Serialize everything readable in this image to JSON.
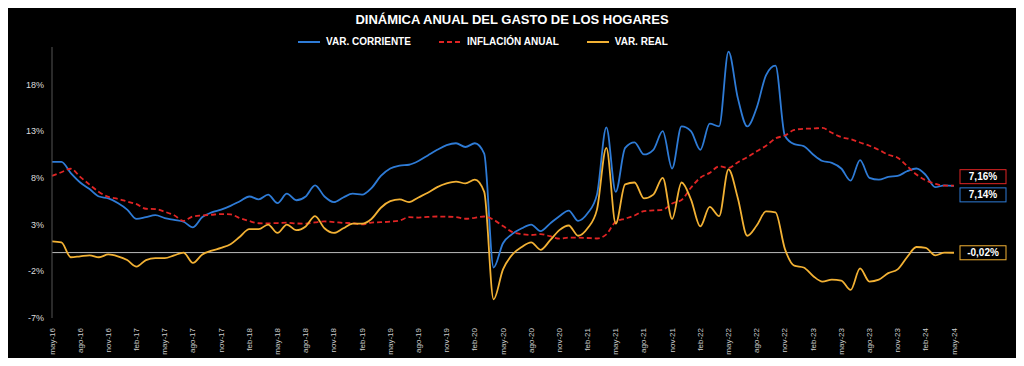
{
  "chart_data": {
    "type": "line",
    "title": "DINÁMICA ANUAL DEL GASTO DE LOS HOGARES",
    "legend": "top",
    "grid": false,
    "categories": [
      "may-16",
      null,
      null,
      "ago-16",
      null,
      null,
      "nov-16",
      null,
      null,
      "feb-17",
      null,
      null,
      "may-17",
      null,
      null,
      "ago-17",
      null,
      null,
      "nov-17",
      null,
      null,
      "feb-18",
      null,
      null,
      "may-18",
      null,
      null,
      "ago-18",
      null,
      null,
      "nov-18",
      null,
      null,
      "feb-19",
      null,
      null,
      "may-19",
      null,
      null,
      "ago-19",
      null,
      null,
      "nov-19",
      null,
      null,
      "feb-20",
      null,
      null,
      "may-20",
      null,
      null,
      "ago-20",
      null,
      null,
      "nov-20",
      null,
      null,
      "feb-21",
      null,
      null,
      "may-21",
      null,
      null,
      "ago-21",
      null,
      null,
      "nov-21",
      null,
      null,
      "feb-22",
      null,
      null,
      "may-22",
      null,
      null,
      "ago-22",
      null,
      null,
      "nov-22",
      null,
      null,
      "feb-23",
      null,
      null,
      "may-23",
      null,
      null,
      "ago-23",
      null,
      null,
      "nov-23",
      null,
      null,
      "feb-24",
      null,
      null,
      "may-24"
    ],
    "ylim": [
      -7,
      22
    ],
    "yticks": [
      {
        "value": -7,
        "label": "-7%"
      },
      {
        "value": -2,
        "label": "-2%"
      },
      {
        "value": 3,
        "label": "3%"
      },
      {
        "value": 8,
        "label": "8%"
      },
      {
        "value": 13,
        "label": "13%"
      },
      {
        "value": 18,
        "label": "18%"
      }
    ],
    "series": [
      {
        "name": "VAR. CORRIENTE",
        "color": "#2e7bd6",
        "line_style": "solid",
        "last_label": "7,14%",
        "values": [
          9.7,
          9.7,
          8.5,
          7.5,
          6.8,
          6.0,
          5.8,
          5.3,
          4.6,
          3.6,
          3.8,
          4.0,
          3.7,
          3.5,
          3.3,
          2.7,
          3.8,
          4.3,
          4.6,
          5.0,
          5.5,
          6.0,
          5.7,
          6.2,
          5.3,
          6.3,
          5.6,
          6.0,
          7.2,
          6.0,
          5.4,
          5.9,
          6.3,
          6.2,
          6.9,
          8.2,
          9.0,
          9.3,
          9.4,
          9.8,
          10.4,
          11.0,
          11.5,
          11.7,
          11.3,
          11.7,
          10.6,
          -1.6,
          1.0,
          2.0,
          2.6,
          3.0,
          2.3,
          3.1,
          3.9,
          4.5,
          3.4,
          4.2,
          6.2,
          13.4,
          6.5,
          11.2,
          11.8,
          10.5,
          11.0,
          13.0,
          9.0,
          13.5,
          13.0,
          11.0,
          13.8,
          13.5,
          21.5,
          16.5,
          13.5,
          15.5,
          19.0,
          20.0,
          12.5,
          11.6,
          11.4,
          10.5,
          9.8,
          9.6,
          9.0,
          7.7,
          9.9,
          8.0,
          7.8,
          8.1,
          8.2,
          8.7,
          9.0,
          8.3,
          7.0,
          7.2,
          7.14
        ]
      },
      {
        "name": "INFLACIÓN ANUAL",
        "color": "#e02424",
        "line_style": "dashed",
        "last_label": "7,16%",
        "values": [
          8.2,
          8.6,
          8.97,
          8.1,
          7.27,
          6.48,
          5.96,
          5.75,
          5.47,
          5.18,
          4.69,
          4.66,
          4.37,
          3.99,
          3.4,
          3.87,
          3.97,
          4.05,
          4.12,
          4.09,
          3.68,
          3.37,
          3.14,
          3.13,
          3.16,
          3.2,
          3.12,
          3.1,
          3.23,
          3.33,
          3.27,
          3.18,
          3.15,
          3.01,
          3.21,
          3.25,
          3.31,
          3.43,
          3.79,
          3.75,
          3.82,
          3.86,
          3.84,
          3.8,
          3.62,
          3.72,
          3.86,
          3.51,
          2.85,
          2.19,
          1.97,
          1.88,
          1.97,
          1.75,
          1.49,
          1.61,
          1.6,
          1.56,
          1.51,
          1.95,
          3.3,
          3.63,
          3.97,
          4.44,
          4.51,
          4.58,
          5.26,
          5.62,
          6.94,
          8.01,
          8.53,
          9.23,
          9.07,
          9.67,
          10.21,
          10.84,
          11.44,
          12.22,
          12.53,
          13.12,
          13.25,
          13.28,
          13.34,
          12.82,
          12.36,
          12.13,
          11.78,
          11.43,
          10.99,
          10.48,
          10.15,
          9.28,
          8.35,
          7.74,
          7.36,
          7.16,
          7.16
        ]
      },
      {
        "name": "VAR. REAL",
        "color": "#f2b134",
        "line_style": "solid",
        "last_label": "-0,02%",
        "values": [
          1.2,
          1.1,
          -0.5,
          -0.4,
          -0.3,
          -0.5,
          -0.2,
          -0.4,
          -0.8,
          -1.5,
          -0.8,
          -0.6,
          -0.6,
          -0.3,
          0.0,
          -1.1,
          -0.2,
          0.2,
          0.5,
          0.9,
          1.7,
          2.5,
          2.5,
          3.0,
          2.1,
          3.0,
          2.4,
          2.8,
          3.9,
          2.6,
          2.1,
          2.6,
          3.1,
          3.1,
          3.6,
          4.8,
          5.5,
          5.7,
          5.4,
          5.9,
          6.4,
          7.0,
          7.4,
          7.6,
          7.4,
          7.8,
          6.5,
          -5.0,
          -1.8,
          -0.2,
          0.6,
          1.1,
          0.3,
          1.3,
          2.4,
          2.9,
          1.8,
          2.6,
          4.6,
          11.2,
          3.1,
          7.3,
          7.5,
          5.8,
          6.2,
          8.0,
          3.6,
          7.5,
          5.7,
          2.8,
          4.9,
          3.9,
          8.9,
          5.8,
          1.8,
          2.9,
          4.4,
          4.3,
          0.4,
          -1.4,
          -1.6,
          -2.5,
          -3.1,
          -2.9,
          -3.0,
          -4.0,
          -1.7,
          -3.1,
          -2.9,
          -2.2,
          -1.8,
          -0.5,
          0.6,
          0.5,
          -0.3,
          0.0,
          -0.02
        ]
      }
    ]
  }
}
